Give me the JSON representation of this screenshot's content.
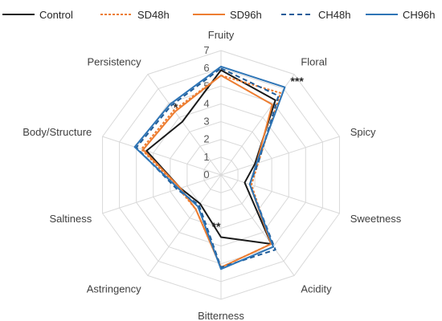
{
  "chart_data": {
    "type": "radar",
    "categories": [
      "Fruity",
      "Floral",
      "Spicy",
      "Sweetness",
      "Acidity",
      "Bitterness",
      "Astringency",
      "Saltiness",
      "Body/Structure",
      "Persistency"
    ],
    "rlim": [
      0,
      7
    ],
    "ticks": [
      "0",
      "1",
      "2",
      "3",
      "4",
      "5",
      "6",
      "7"
    ],
    "grid": true,
    "legend_position": "top",
    "series": [
      {
        "name": "Control",
        "color": "#1a1a1a",
        "dash": "solid",
        "values": [
          5.9,
          5.2,
          2.0,
          1.4,
          4.8,
          3.5,
          2.0,
          2.4,
          4.4,
          3.7
        ]
      },
      {
        "name": "SD48h",
        "color": "#ed7d31",
        "dash": "dotted",
        "values": [
          5.6,
          5.7,
          2.2,
          1.8,
          4.8,
          5.2,
          2.4,
          2.5,
          4.7,
          4.5
        ]
      },
      {
        "name": "SD96h",
        "color": "#ed7d31",
        "dash": "solid",
        "values": [
          5.6,
          4.9,
          2.1,
          1.7,
          4.8,
          5.2,
          2.4,
          2.4,
          4.6,
          4.4
        ]
      },
      {
        "name": "CH48h",
        "color": "#1f5c99",
        "dash": "dashed",
        "values": [
          6.0,
          5.5,
          2.2,
          1.7,
          5.2,
          5.2,
          2.1,
          2.6,
          5.0,
          4.8
        ]
      },
      {
        "name": "CH96h",
        "color": "#2e75b6",
        "dash": "solid",
        "values": [
          6.1,
          6.1,
          2.1,
          1.7,
          5.0,
          5.3,
          2.2,
          2.5,
          5.1,
          4.9
        ]
      }
    ],
    "annotations": [
      {
        "text": "***",
        "category": "Floral"
      },
      {
        "text": "*",
        "category": "Persistency"
      },
      {
        "text": "**",
        "category": "Bitterness"
      }
    ]
  }
}
